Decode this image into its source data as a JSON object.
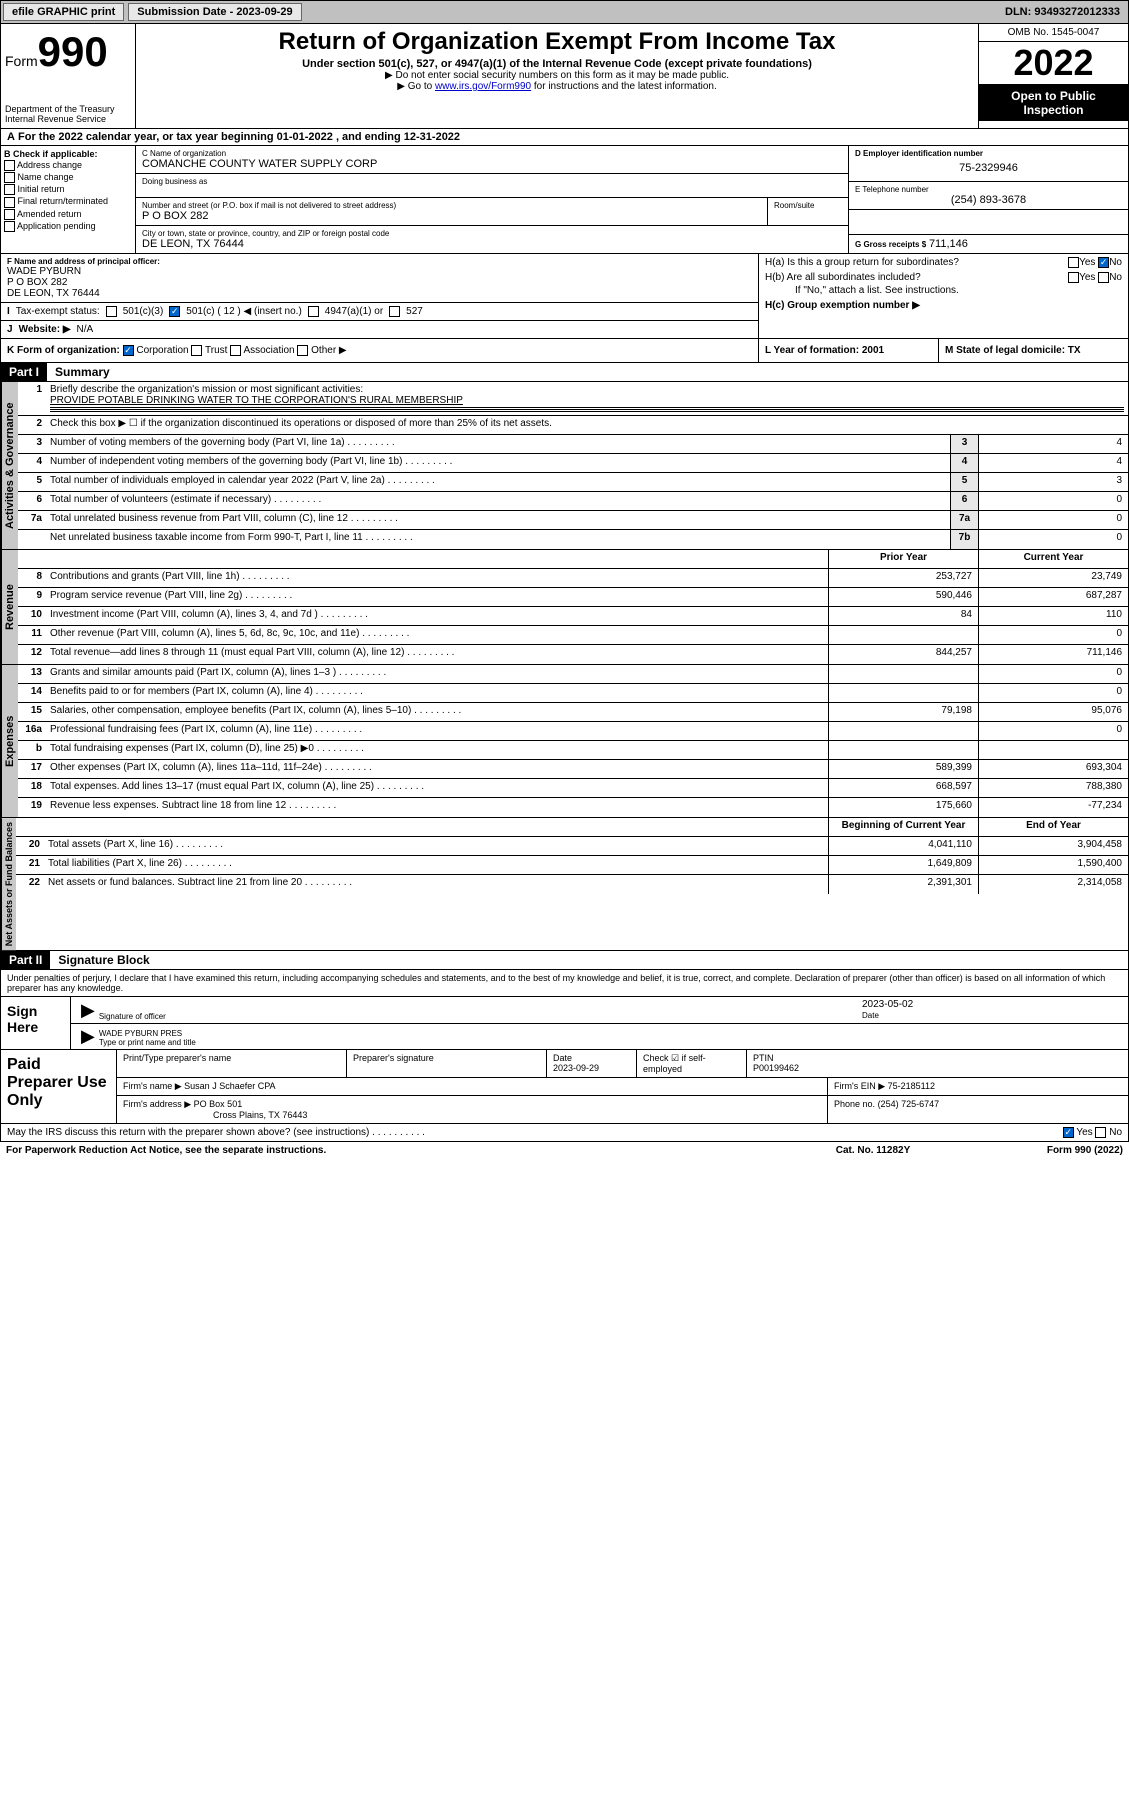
{
  "topbar": {
    "efile": "efile GRAPHIC print",
    "submission_label": "Submission Date - 2023-09-29",
    "dln": "DLN: 93493272012333"
  },
  "header": {
    "form_word": "Form",
    "form_num": "990",
    "title": "Return of Organization Exempt From Income Tax",
    "subtitle": "Under section 501(c), 527, or 4947(a)(1) of the Internal Revenue Code (except private foundations)",
    "note1": "▶ Do not enter social security numbers on this form as it may be made public.",
    "note2_pre": "▶ Go to ",
    "note2_link": "www.irs.gov/Form990",
    "note2_post": " for instructions and the latest information.",
    "dept": "Department of the Treasury\nInternal Revenue Service",
    "omb": "OMB No. 1545-0047",
    "year": "2022",
    "inspect": "Open to Public Inspection"
  },
  "rowA": "For the 2022 calendar year, or tax year beginning 01-01-2022   , and ending 12-31-2022",
  "boxB": {
    "title": "B Check if applicable:",
    "opts": [
      "Address change",
      "Name change",
      "Initial return",
      "Final return/terminated",
      "Amended return",
      "Application pending"
    ]
  },
  "boxC": {
    "name_lbl": "C Name of organization",
    "name": "COMANCHE COUNTY WATER SUPPLY CORP",
    "dba_lbl": "Doing business as",
    "street_lbl": "Number and street (or P.O. box if mail is not delivered to street address)",
    "street": "P O BOX 282",
    "room_lbl": "Room/suite",
    "city_lbl": "City or town, state or province, country, and ZIP or foreign postal code",
    "city": "DE LEON, TX  76444"
  },
  "boxD": {
    "lbl": "D Employer identification number",
    "val": "75-2329946"
  },
  "boxE": {
    "lbl": "E Telephone number",
    "val": "(254) 893-3678"
  },
  "boxG": {
    "lbl": "G Gross receipts $",
    "val": "711,146"
  },
  "boxF": {
    "lbl": "F Name and address of principal officer:",
    "name": "WADE PYBURN",
    "addr1": "P O BOX 282",
    "addr2": "DE LEON, TX  76444"
  },
  "boxH": {
    "a": "H(a)  Is this a group return for subordinates?",
    "b": "H(b)  Are all subordinates included?",
    "note": "If \"No,\" attach a list. See instructions.",
    "c": "H(c)  Group exemption number ▶"
  },
  "boxI": {
    "lbl": "Tax-exempt status:",
    "o1": "501(c)(3)",
    "o2": "501(c) ( 12 ) ◀ (insert no.)",
    "o3": "4947(a)(1) or",
    "o4": "527"
  },
  "boxJ": {
    "lbl": "Website: ▶",
    "val": "N/A"
  },
  "boxK": {
    "lbl": "K Form of organization:",
    "o1": "Corporation",
    "o2": "Trust",
    "o3": "Association",
    "o4": "Other ▶"
  },
  "boxL": {
    "lbl": "L Year of formation: 2001"
  },
  "boxM": {
    "lbl": "M State of legal domicile: TX"
  },
  "part1": {
    "hdr": "Part I",
    "title": "Summary"
  },
  "summary": {
    "l1_lbl": "Briefly describe the organization's mission or most significant activities:",
    "l1_val": "PROVIDE POTABLE DRINKING WATER TO THE CORPORATION'S RURAL MEMBERSHIP",
    "l2": "Check this box ▶ ☐  if the organization discontinued its operations or disposed of more than 25% of its net assets.",
    "rows_single": [
      {
        "n": "3",
        "t": "Number of voting members of the governing body (Part VI, line 1a)",
        "b": "3",
        "v": "4"
      },
      {
        "n": "4",
        "t": "Number of independent voting members of the governing body (Part VI, line 1b)",
        "b": "4",
        "v": "4"
      },
      {
        "n": "5",
        "t": "Total number of individuals employed in calendar year 2022 (Part V, line 2a)",
        "b": "5",
        "v": "3"
      },
      {
        "n": "6",
        "t": "Total number of volunteers (estimate if necessary)",
        "b": "6",
        "v": "0"
      },
      {
        "n": "7a",
        "t": "Total unrelated business revenue from Part VIII, column (C), line 12",
        "b": "7a",
        "v": "0"
      },
      {
        "n": "",
        "t": "Net unrelated business taxable income from Form 990-T, Part I, line 11",
        "b": "7b",
        "v": "0"
      }
    ],
    "hdr_prior": "Prior Year",
    "hdr_curr": "Current Year",
    "revenue": [
      {
        "n": "8",
        "t": "Contributions and grants (Part VIII, line 1h)",
        "p": "253,727",
        "c": "23,749"
      },
      {
        "n": "9",
        "t": "Program service revenue (Part VIII, line 2g)",
        "p": "590,446",
        "c": "687,287"
      },
      {
        "n": "10",
        "t": "Investment income (Part VIII, column (A), lines 3, 4, and 7d )",
        "p": "84",
        "c": "110"
      },
      {
        "n": "11",
        "t": "Other revenue (Part VIII, column (A), lines 5, 6d, 8c, 9c, 10c, and 11e)",
        "p": "",
        "c": "0"
      },
      {
        "n": "12",
        "t": "Total revenue—add lines 8 through 11 (must equal Part VIII, column (A), line 12)",
        "p": "844,257",
        "c": "711,146"
      }
    ],
    "expenses": [
      {
        "n": "13",
        "t": "Grants and similar amounts paid (Part IX, column (A), lines 1–3 )",
        "p": "",
        "c": "0"
      },
      {
        "n": "14",
        "t": "Benefits paid to or for members (Part IX, column (A), line 4)",
        "p": "",
        "c": "0"
      },
      {
        "n": "15",
        "t": "Salaries, other compensation, employee benefits (Part IX, column (A), lines 5–10)",
        "p": "79,198",
        "c": "95,076"
      },
      {
        "n": "16a",
        "t": "Professional fundraising fees (Part IX, column (A), line 11e)",
        "p": "",
        "c": "0"
      },
      {
        "n": "b",
        "t": "Total fundraising expenses (Part IX, column (D), line 25) ▶0",
        "p": "",
        "c": ""
      },
      {
        "n": "17",
        "t": "Other expenses (Part IX, column (A), lines 11a–11d, 11f–24e)",
        "p": "589,399",
        "c": "693,304"
      },
      {
        "n": "18",
        "t": "Total expenses. Add lines 13–17 (must equal Part IX, column (A), line 25)",
        "p": "668,597",
        "c": "788,380"
      },
      {
        "n": "19",
        "t": "Revenue less expenses. Subtract line 18 from line 12",
        "p": "175,660",
        "c": "-77,234"
      }
    ],
    "hdr_begin": "Beginning of Current Year",
    "hdr_end": "End of Year",
    "netassets": [
      {
        "n": "20",
        "t": "Total assets (Part X, line 16)",
        "p": "4,041,110",
        "c": "3,904,458"
      },
      {
        "n": "21",
        "t": "Total liabilities (Part X, line 26)",
        "p": "1,649,809",
        "c": "1,590,400"
      },
      {
        "n": "22",
        "t": "Net assets or fund balances. Subtract line 21 from line 20",
        "p": "2,391,301",
        "c": "2,314,058"
      }
    ],
    "vtab_ag": "Activities & Governance",
    "vtab_rev": "Revenue",
    "vtab_exp": "Expenses",
    "vtab_na": "Net Assets or Fund Balances"
  },
  "part2": {
    "hdr": "Part II",
    "title": "Signature Block"
  },
  "sig": {
    "decl": "Under penalties of perjury, I declare that I have examined this return, including accompanying schedules and statements, and to the best of my knowledge and belief, it is true, correct, and complete. Declaration of preparer (other than officer) is based on all information of which preparer has any knowledge.",
    "sign_here": "Sign Here",
    "sig_officer": "Signature of officer",
    "date": "2023-05-02",
    "date_lbl": "Date",
    "name": "WADE PYBURN  PRES",
    "name_lbl": "Type or print name and title"
  },
  "prep": {
    "title": "Paid Preparer Use Only",
    "h1": "Print/Type preparer's name",
    "h2": "Preparer's signature",
    "h3": "Date",
    "h4": "Check ☑ if self-employed",
    "h5": "PTIN",
    "date": "2023-09-29",
    "ptin": "P00199462",
    "firm_lbl": "Firm's name    ▶",
    "firm": "Susan J Schaefer CPA",
    "ein_lbl": "Firm's EIN ▶",
    "ein": "75-2185112",
    "addr_lbl": "Firm's address ▶",
    "addr1": "PO Box 501",
    "addr2": "Cross Plains, TX  76443",
    "phone_lbl": "Phone no.",
    "phone": "(254) 725-6747"
  },
  "foot": {
    "q": "May the IRS discuss this return with the preparer shown above? (see instructions)",
    "paperwork": "For Paperwork Reduction Act Notice, see the separate instructions.",
    "cat": "Cat. No. 11282Y",
    "form": "Form 990 (2022)"
  }
}
